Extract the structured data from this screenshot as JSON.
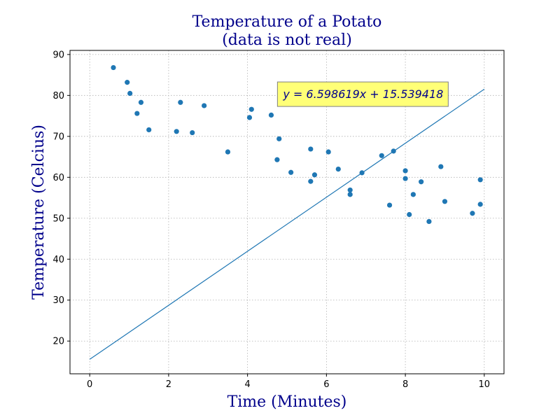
{
  "chart_data": {
    "type": "scatter",
    "title": [
      "Temperature of a Potato",
      "(data is not real)"
    ],
    "xlabel": "Time (Minutes)",
    "ylabel": "Temperature (Celcius)",
    "xlim": [
      -0.5,
      10.5
    ],
    "ylim": [
      12,
      91
    ],
    "xticks": [
      0,
      2,
      4,
      6,
      8,
      10
    ],
    "yticks": [
      20,
      30,
      40,
      50,
      60,
      70,
      80,
      90
    ],
    "grid": true,
    "points": {
      "x": [
        0.6,
        0.95,
        1.02,
        1.2,
        1.3,
        1.5,
        2.2,
        2.3,
        2.6,
        2.9,
        3.5,
        4.05,
        4.1,
        4.6,
        4.75,
        4.8,
        5.1,
        5.6,
        5.6,
        5.7,
        6.05,
        6.3,
        6.6,
        6.6,
        6.9,
        7.4,
        7.6,
        7.7,
        8.0,
        8.0,
        8.1,
        8.2,
        8.4,
        8.6,
        8.9,
        9.0,
        9.7,
        9.9,
        9.9
      ],
      "y": [
        86.8,
        83.2,
        80.5,
        75.6,
        78.3,
        71.6,
        71.2,
        78.3,
        70.9,
        77.5,
        66.2,
        74.6,
        76.6,
        75.2,
        64.3,
        69.4,
        61.2,
        66.9,
        59.0,
        60.6,
        66.2,
        62.0,
        56.9,
        55.8,
        61.1,
        65.3,
        53.2,
        66.4,
        61.6,
        59.7,
        50.9,
        55.8,
        58.9,
        49.2,
        62.6,
        54.1,
        51.2,
        59.4,
        53.4
      ],
      "color": "#1f77b4"
    },
    "fit_line": {
      "slope": 6.598619,
      "intercept": 15.539418,
      "x_range": [
        0,
        10
      ],
      "color": "#1f77b4"
    },
    "annotation": {
      "text": "y = 6.598619x + 15.539418",
      "anchor_x": 4.9,
      "anchor_y": 80.3,
      "background": "#ffff77",
      "border": "#7f7f7f"
    },
    "colors": {
      "title": "#00008b",
      "grid": "#b0b0b0"
    }
  }
}
